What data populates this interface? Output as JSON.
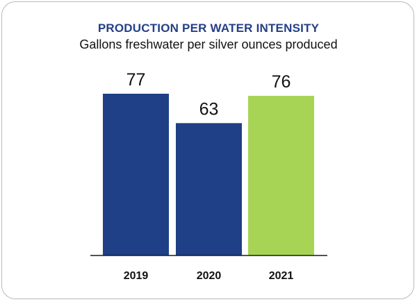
{
  "chart_data": {
    "type": "bar",
    "title": "PRODUCTION PER WATER INTENSITY",
    "subtitle": "Gallons freshwater per silver ounces produced",
    "categories": [
      "2019",
      "2020",
      "2021"
    ],
    "values": [
      77,
      63,
      76
    ],
    "value_labels": [
      "77",
      "63",
      "76"
    ],
    "bar_colors": [
      "#1f3f86",
      "#1f3f86",
      "#a8d456"
    ],
    "title_color": "#233f86",
    "axis_color": "#1a1a1a",
    "ylim": [
      0,
      100
    ],
    "grid": false,
    "legend": "none"
  }
}
